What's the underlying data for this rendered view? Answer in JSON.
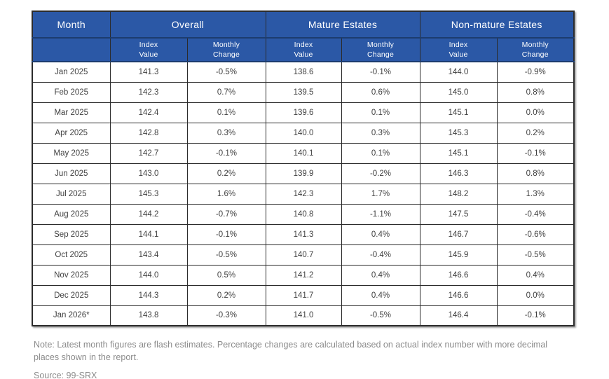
{
  "colors": {
    "page_bg": "#ffffff",
    "header_bg": "#2b58a6",
    "header_text": "#ffffff",
    "header_divider": "#1c3c6f",
    "border": "#2b2b2b",
    "body_text": "#3f3f3f",
    "note_text": "#8b8b8b"
  },
  "table": {
    "month_header": "Month",
    "groups": [
      {
        "label": "Overall",
        "sub": [
          "Index\nValue",
          "Monthly\nChange"
        ]
      },
      {
        "label": "Mature Estates",
        "sub": [
          "Index\nValue",
          "Monthly\nChange"
        ]
      },
      {
        "label": "Non-mature Estates",
        "sub": [
          "Index\nValue",
          "Monthly\nChange"
        ]
      }
    ],
    "rows": [
      {
        "cells": [
          "Jan 2025",
          "141.3",
          "-0.5%",
          "138.6",
          "-0.1%",
          "144.0",
          "-0.9%"
        ]
      },
      {
        "cells": [
          "Feb 2025",
          "142.3",
          "0.7%",
          "139.5",
          "0.6%",
          "145.0",
          "0.8%"
        ]
      },
      {
        "cells": [
          "Mar 2025",
          "142.4",
          "0.1%",
          "139.6",
          "0.1%",
          "145.1",
          "0.0%"
        ]
      },
      {
        "cells": [
          "Apr 2025",
          "142.8",
          "0.3%",
          "140.0",
          "0.3%",
          "145.3",
          "0.2%"
        ]
      },
      {
        "cells": [
          "May 2025",
          "142.7",
          "-0.1%",
          "140.1",
          "0.1%",
          "145.1",
          "-0.1%"
        ]
      },
      {
        "cells": [
          "Jun 2025",
          "143.0",
          "0.2%",
          "139.9",
          "-0.2%",
          "146.3",
          "0.8%"
        ]
      },
      {
        "cells": [
          "Jul 2025",
          "145.3",
          "1.6%",
          "142.3",
          "1.7%",
          "148.2",
          "1.3%"
        ]
      },
      {
        "cells": [
          "Aug 2025",
          "144.2",
          "-0.7%",
          "140.8",
          "-1.1%",
          "147.5",
          "-0.4%"
        ]
      },
      {
        "cells": [
          "Sep 2025",
          "144.1",
          "-0.1%",
          "141.3",
          "0.4%",
          "146.7",
          "-0.6%"
        ]
      },
      {
        "cells": [
          "Oct 2025",
          "143.4",
          "-0.5%",
          "140.7",
          "-0.4%",
          "145.9",
          "-0.5%"
        ]
      },
      {
        "cells": [
          "Nov 2025",
          "144.0",
          "0.5%",
          "141.2",
          "0.4%",
          "146.6",
          "0.4%"
        ]
      },
      {
        "cells": [
          "Dec 2025",
          "144.3",
          "0.2%",
          "141.7",
          "0.4%",
          "146.6",
          "0.0%"
        ]
      },
      {
        "cells": [
          "Jan 2026*",
          "143.8",
          "-0.3%",
          "141.0",
          "-0.5%",
          "146.4",
          "-0.1%"
        ]
      }
    ]
  },
  "notes": {
    "note": "Note: Latest month figures are flash estimates. Percentage changes are calculated based on actual index number with more decimal places shown in the report.",
    "source": "Source: 99-SRX"
  },
  "chart_data": {
    "type": "table",
    "title": "",
    "categories": [
      "Jan 2025",
      "Feb 2025",
      "Mar 2025",
      "Apr 2025",
      "May 2025",
      "Jun 2025",
      "Jul 2025",
      "Aug 2025",
      "Sep 2025",
      "Oct 2025",
      "Nov 2025",
      "Dec 2025",
      "Jan 2026*"
    ],
    "series": [
      {
        "name": "Overall Index Value",
        "values": [
          141.3,
          142.3,
          142.4,
          142.8,
          142.7,
          143.0,
          145.3,
          144.2,
          144.1,
          143.4,
          144.0,
          144.3,
          143.8
        ]
      },
      {
        "name": "Overall Monthly Change (%)",
        "values": [
          -0.5,
          0.7,
          0.1,
          0.3,
          -0.1,
          0.2,
          1.6,
          -0.7,
          -0.1,
          -0.5,
          0.5,
          0.2,
          -0.3
        ]
      },
      {
        "name": "Mature Estates Index Value",
        "values": [
          138.6,
          139.5,
          139.6,
          140.0,
          140.1,
          139.9,
          142.3,
          140.8,
          141.3,
          140.7,
          141.2,
          141.7,
          141.0
        ]
      },
      {
        "name": "Mature Estates Monthly Change (%)",
        "values": [
          -0.1,
          0.6,
          0.1,
          0.3,
          0.1,
          -0.2,
          1.7,
          -1.1,
          0.4,
          -0.4,
          0.4,
          0.4,
          -0.5
        ]
      },
      {
        "name": "Non-mature Estates Index Value",
        "values": [
          144.0,
          145.0,
          145.1,
          145.3,
          145.1,
          146.3,
          148.2,
          147.5,
          146.7,
          145.9,
          146.6,
          146.6,
          146.4
        ]
      },
      {
        "name": "Non-mature Estates Monthly Change (%)",
        "values": [
          -0.9,
          0.8,
          0.0,
          0.2,
          -0.1,
          0.8,
          1.3,
          -0.4,
          -0.6,
          -0.5,
          0.4,
          0.0,
          -0.1
        ]
      }
    ]
  }
}
